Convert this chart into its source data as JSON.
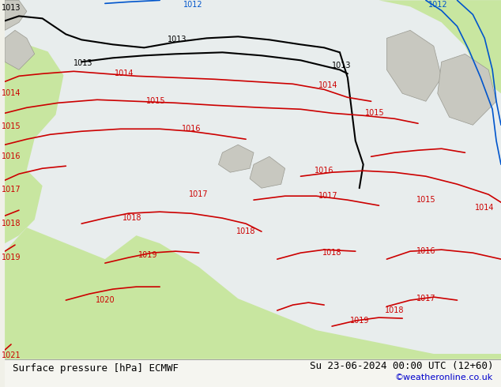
{
  "title_left": "Surface pressure [hPa] ECMWF",
  "title_right": "Su 23-06-2024 00:00 UTC (12+60)",
  "credit": "©weatheronline.co.uk",
  "bg_color": "#f0f0e8",
  "map_bg": "#e8eded",
  "green_land_color": "#c8e6a0",
  "gray_land_color": "#c8c8c0",
  "gray_edge_color": "#999990",
  "sea_color": "#e8eded",
  "isobar_red_color": "#cc0000",
  "isobar_black_color": "#000000",
  "isobar_blue_color": "#0055cc",
  "label_fontsize": 7,
  "title_fontsize": 9,
  "credit_fontsize": 8,
  "figsize": [
    6.34,
    4.9
  ],
  "dpi": 100
}
